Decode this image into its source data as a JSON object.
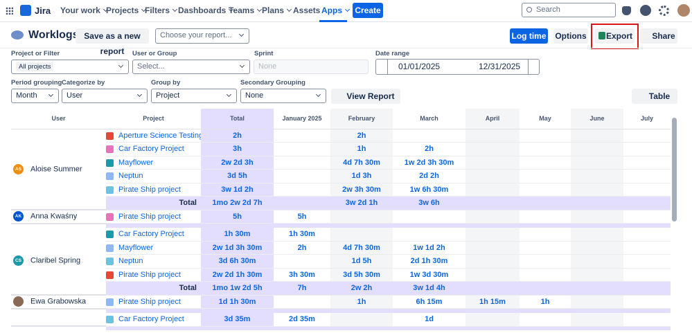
{
  "nav": {
    "logo": "Jira",
    "items": [
      "Your work",
      "Projects",
      "Filters",
      "Dashboards",
      "Teams",
      "Plans",
      "Assets",
      "Apps"
    ],
    "create": "Create",
    "search": "Search"
  },
  "toolbar": {
    "title": "Worklogs",
    "save": "Save as a new report",
    "report_placeholder": "Choose your report...",
    "log_time": "Log time",
    "options": "Options",
    "export": "Export",
    "share": "Share"
  },
  "filters": {
    "project_label": "Project or Filter",
    "project_value": "All projects",
    "user_label": "User or Group",
    "user_value": "Select...",
    "sprint_label": "Sprint",
    "sprint_value": "None",
    "date_label": "Date range",
    "date_from": "01/01/2025",
    "date_to": "12/31/2025",
    "period_label": "Period grouping",
    "period_value": "Month",
    "categorize_label": "Categorize by",
    "categorize_value": "User",
    "group_label": "Group by",
    "group_value": "Project",
    "secondary_label": "Secondary Grouping",
    "secondary_value": "None",
    "view_report": "View Report",
    "view_mode": "Table"
  },
  "table": {
    "headers": [
      "User",
      "Project",
      "Total",
      "January 2025",
      "February",
      "March",
      "April",
      "May",
      "June",
      "July"
    ],
    "groups": [
      {
        "user": "Aloise Summer",
        "initials": "AS",
        "avatar_color": "#f18d13",
        "rows": [
          {
            "project": "Aperture Science Testing",
            "cells": [
              "2h",
              null,
              "2h",
              null,
              null,
              null,
              null,
              null
            ]
          },
          {
            "project": "Car Factory Project",
            "cells": [
              "3h",
              null,
              "1h",
              "2h",
              null,
              null,
              null,
              null
            ]
          },
          {
            "project": "Mayflower",
            "cells": [
              "2w 2d 3h",
              null,
              "4d 7h 30m",
              "1w 2d 3h 30m",
              null,
              null,
              null,
              null
            ]
          },
          {
            "project": "Neptun",
            "cells": [
              "3d 5h",
              null,
              "1d 3h",
              "2d 2h",
              null,
              null,
              null,
              null
            ]
          },
          {
            "project": "Pirate Ship project",
            "cells": [
              "3w 1d 2h",
              null,
              "2w 3h 30m",
              "1w 6h 30m",
              null,
              null,
              null,
              null
            ]
          }
        ],
        "total": {
          "label": "Total",
          "cells": [
            "1mo 2w 2d 7h",
            null,
            "3w 2d 1h",
            "3w 6h",
            null,
            null,
            null,
            null
          ]
        }
      },
      {
        "user": "Anna Kwaśny",
        "initials": "AK",
        "avatar_color": "#0055cc",
        "rows": [
          {
            "project": "Pirate Ship project",
            "cells": [
              "5h",
              "5h",
              null,
              null,
              null,
              null,
              null,
              null
            ]
          }
        ],
        "total": null
      },
      {
        "user": "Claribel Spring",
        "initials": "CS",
        "avatar_color": "#1d9aaa",
        "rows": [
          {
            "project": "Car Factory Project",
            "cells": [
              "1h 30m",
              "1h 30m",
              null,
              null,
              null,
              null,
              null,
              null
            ]
          },
          {
            "project": "Mayflower",
            "cells": [
              "2w 1d 3h 30m",
              "2h",
              "4d 7h 30m",
              "1w 1d 2h",
              null,
              null,
              null,
              null
            ]
          },
          {
            "project": "Neptun",
            "cells": [
              "3d 6h 30m",
              null,
              "1d 5h",
              "2d 1h 30m",
              null,
              null,
              null,
              null
            ]
          },
          {
            "project": "Pirate Ship project",
            "cells": [
              "2w 2d 1h 30m",
              "3h 30m",
              "3d 5h 30m",
              "1w 3d 30m",
              null,
              null,
              null,
              null
            ]
          }
        ],
        "total": {
          "label": "Total",
          "cells": [
            "1mo 1w 2d 5h",
            "7h",
            "2w 2h",
            "3w 1d 4h",
            null,
            null,
            null,
            null
          ]
        }
      },
      {
        "user": "Ewa Grabowska",
        "avatar_color": "#8a6a55",
        "rows": [
          {
            "project": "Pirate Ship project",
            "cells": [
              "1d 1h 30m",
              null,
              "1h",
              "6h 15m",
              "1h 15m",
              "1h",
              null,
              null
            ]
          }
        ],
        "total": null
      },
      {
        "rows": [
          {
            "project": "Car Factory Project",
            "cells": [
              "3d 35m",
              "2d 35m",
              null,
              "1d",
              null,
              null,
              null,
              null
            ]
          }
        ],
        "total": null
      }
    ]
  }
}
